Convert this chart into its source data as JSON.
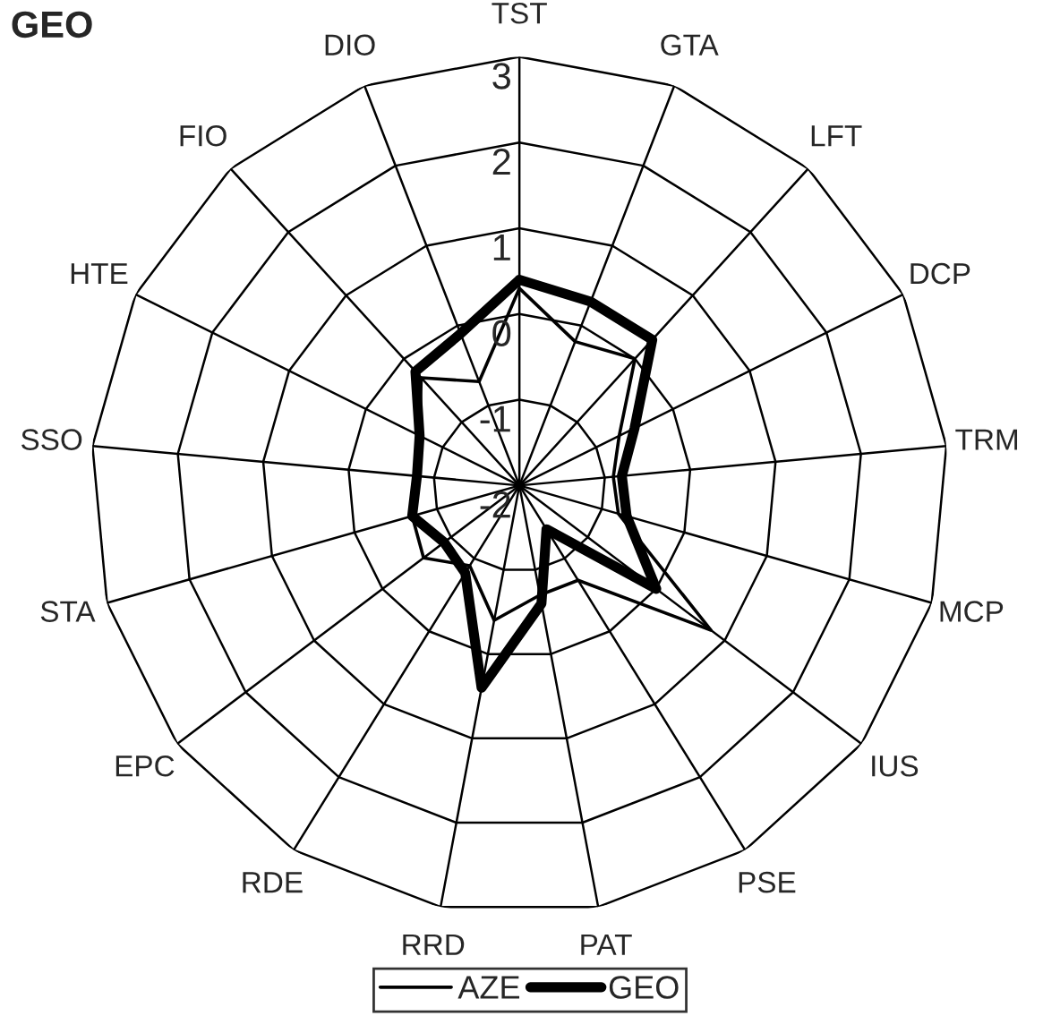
{
  "chart_data": {
    "type": "radar",
    "title": "GEO",
    "categories": [
      "TST",
      "GTA",
      "LFT",
      "DCP",
      "TRM",
      "MCP",
      "IUS",
      "PSE",
      "PAT",
      "RRD",
      "RDE",
      "EPC",
      "STA",
      "SSO",
      "HTE",
      "FIO",
      "DIO"
    ],
    "series": [
      {
        "name": "AZE",
        "color": "#000000",
        "values": [
          0.3,
          -0.2,
          0.0,
          -0.7,
          -0.9,
          -0.8,
          0.8,
          -0.7,
          -0.7,
          -0.4,
          -0.9,
          -0.6,
          -0.7,
          -0.8,
          -0.7,
          -0.3,
          -0.7
        ]
      },
      {
        "name": "GEO",
        "color": "#000000",
        "values": [
          0.4,
          0.3,
          0.3,
          -0.5,
          -0.8,
          -0.7,
          0.0,
          -1.4,
          -0.6,
          0.4,
          -0.8,
          -0.9,
          -0.7,
          -0.8,
          -0.7,
          -0.2,
          -0.1
        ]
      }
    ],
    "ylim": [
      -2,
      3
    ],
    "yticks": [
      -2,
      -1,
      0,
      1,
      2,
      3
    ],
    "grid": true,
    "legend": "bottom",
    "marker": "none",
    "line_style": "solid"
  }
}
